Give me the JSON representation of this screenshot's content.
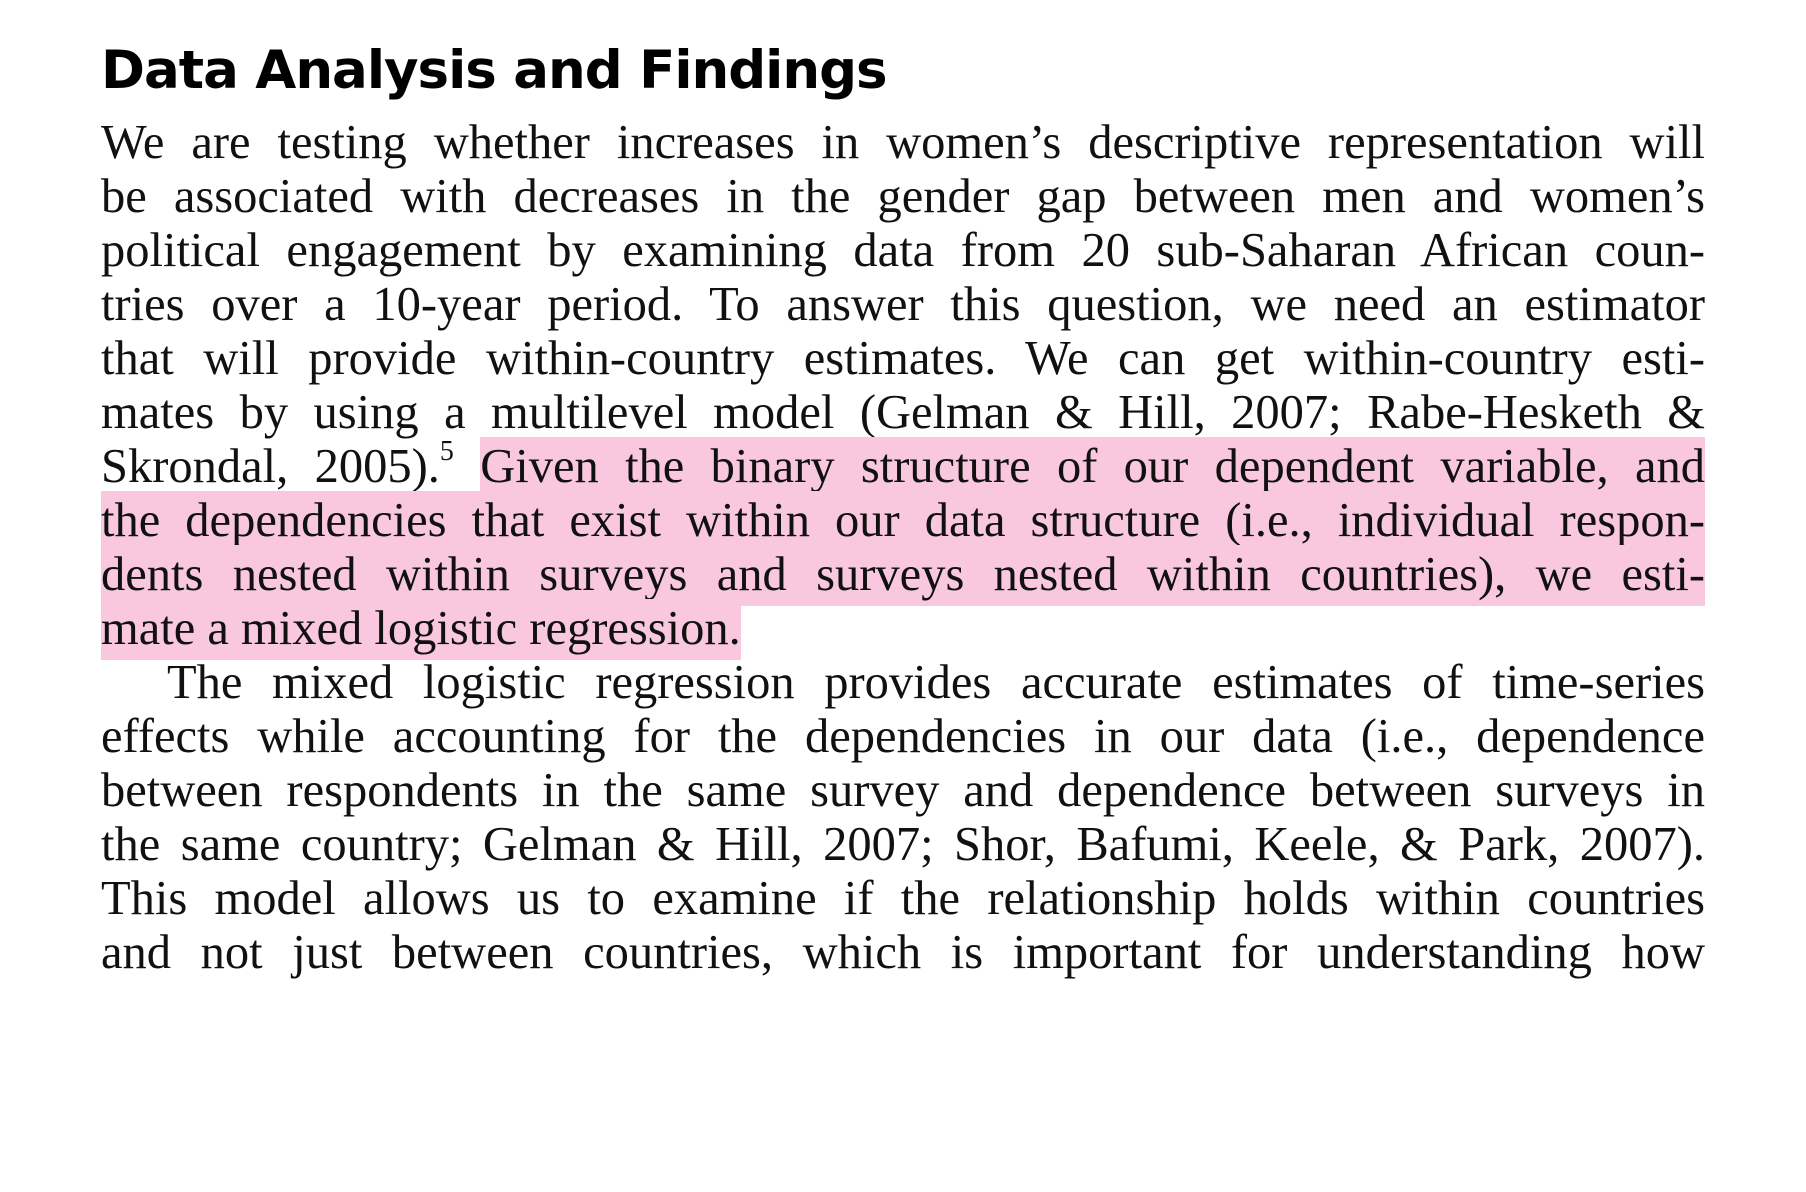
{
  "heading": "Data Analysis and Findings",
  "paragraph1": {
    "line1": "We are testing whether increases in women’s descriptive representation will",
    "line2": "be associated with decreases in the gender gap between men and women’s",
    "line3": "political engagement by examining data from 20 sub-Saharan African coun-",
    "line4": "tries over a 10-year period. To answer this question, we need an estimator",
    "line5": "that will provide within-country estimates. We can get within-country esti-",
    "line6": "mates by using a multilevel model (Gelman & Hill, 2007; Rabe-Hesketh &",
    "line7_pre": "Skrondal, 2005).",
    "footnote": "5",
    "line7_hl": "Given the binary structure of our dependent variable, and",
    "line8_hl": "the dependencies that exist within our data structure (i.e., individual respon-",
    "line9_hl": "dents nested within surveys and surveys nested within countries), we esti-",
    "line10_hl": "mate a mixed logistic regression."
  },
  "paragraph2": {
    "line1": "The mixed logistic regression provides accurate estimates of time-series",
    "line2": "effects while accounting for the dependencies in our data (i.e., dependence",
    "line3": "between respondents in the same survey and dependence between surveys in",
    "line4": "the same country; Gelman & Hill, 2007; Shor, Bafumi, Keele, & Park, 2007).",
    "line5": "This model allows us to examine if the relationship holds within countries",
    "line6": "and not just between countries, which is important for understanding how"
  },
  "colors": {
    "highlight": "#f9c8df",
    "text": "#111111"
  }
}
